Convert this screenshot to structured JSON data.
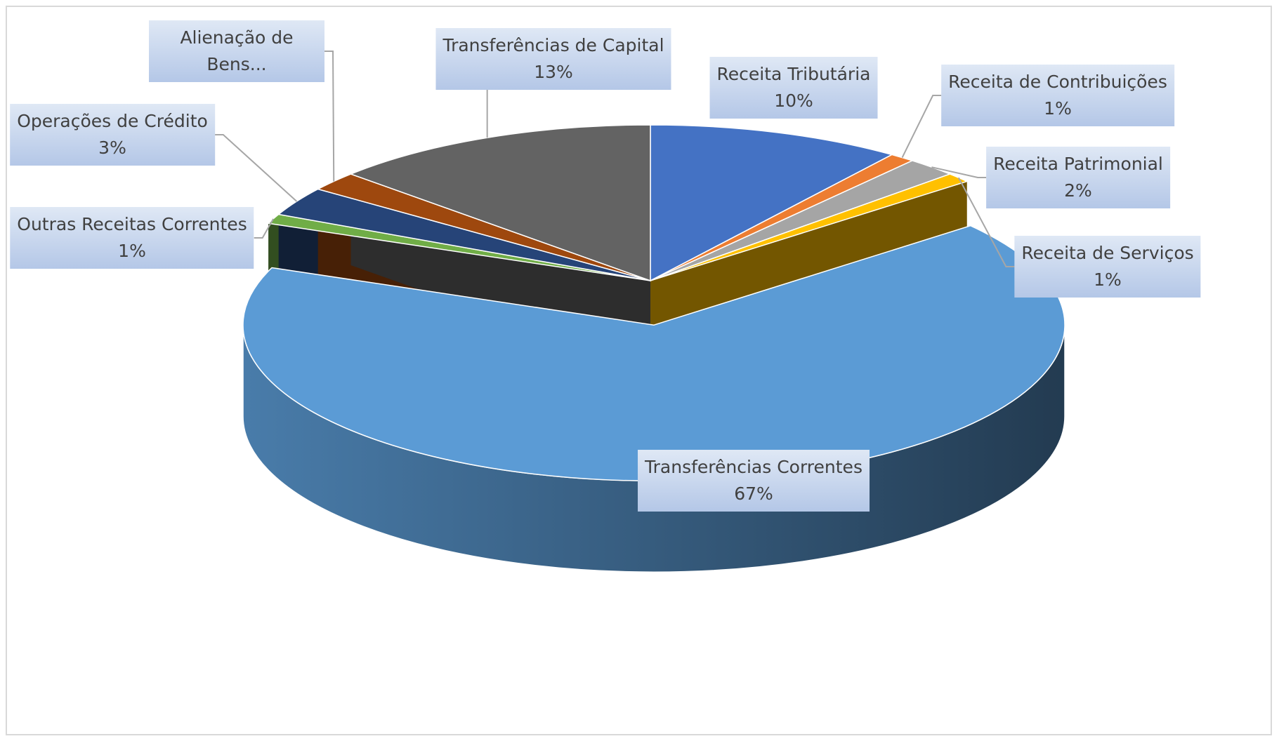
{
  "chart_data": {
    "type": "pie3d",
    "categories": [
      "Receita Tributária",
      "Receita de Contribuições",
      "Receita Patrimonial",
      "Receita de Serviços",
      "Transferências Correntes",
      "Outras Receitas Correntes",
      "Operações de Crédito",
      "Alienação de Bens...",
      "Transferências de Capital"
    ],
    "values": [
      10,
      1,
      2,
      1,
      67,
      1,
      3,
      2,
      13
    ],
    "value_labels": [
      "10%",
      "1%",
      "2%",
      "1%",
      "67%",
      "1%",
      "3%",
      null,
      "13%"
    ],
    "colors": [
      "#4472c4",
      "#ed7d31",
      "#a5a5a5",
      "#ffc000",
      "#5b9bd5",
      "#70ad47",
      "#264478",
      "#9e480e",
      "#636363"
    ],
    "exploded": [
      4
    ]
  }
}
